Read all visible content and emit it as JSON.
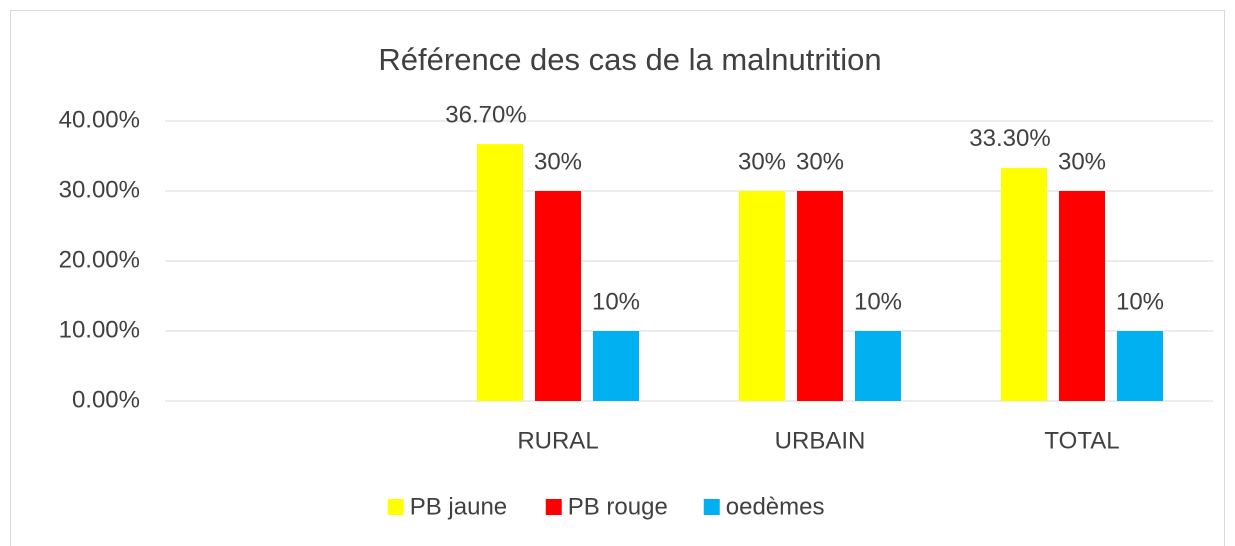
{
  "chart_data": {
    "type": "bar",
    "title": "Référence des cas de la malnutrition",
    "categories": [
      null,
      "RURAL",
      "URBAIN",
      "TOTAL"
    ],
    "series": [
      {
        "name": "PB jaune",
        "color": "#ffff00",
        "values": [
          null,
          36.7,
          30,
          33.3
        ],
        "value_labels": [
          null,
          "36.70%",
          "30%",
          "33.30%"
        ]
      },
      {
        "name": "PB rouge",
        "color": "#ff0000",
        "values": [
          null,
          30,
          30,
          30
        ],
        "value_labels": [
          null,
          "30%",
          "30%",
          "30%"
        ]
      },
      {
        "name": "oedèmes",
        "color": "#00b0f0",
        "values": [
          null,
          10,
          10,
          10
        ],
        "value_labels": [
          null,
          "10%",
          "10%",
          "10%"
        ]
      }
    ],
    "ylim": [
      0,
      40
    ],
    "yticks": [
      {
        "value": 0,
        "label": "0.00%"
      },
      {
        "value": 10,
        "label": "10.00%"
      },
      {
        "value": 20,
        "label": "20.00%"
      },
      {
        "value": 30,
        "label": "30.00%"
      },
      {
        "value": 40,
        "label": "40.00%"
      }
    ],
    "grid": true,
    "legend": "bottom"
  }
}
